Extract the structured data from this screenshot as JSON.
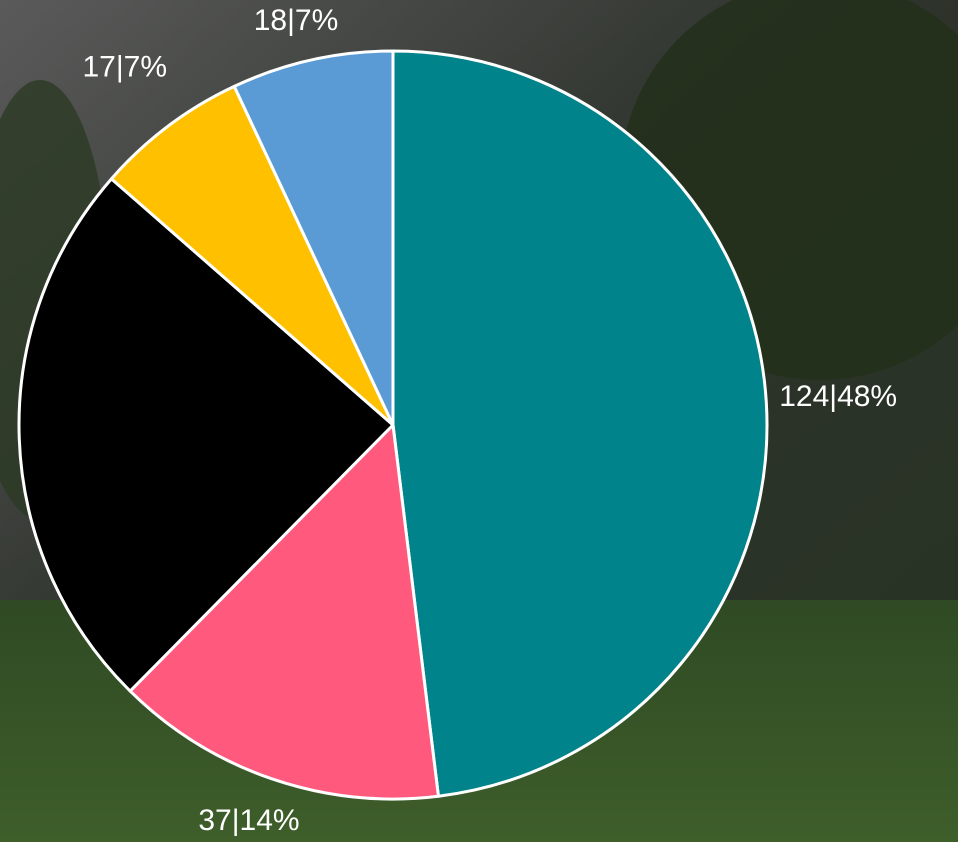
{
  "chart_data": {
    "type": "pie",
    "values": [
      124,
      37,
      62,
      17,
      18
    ],
    "value_labels": [
      "124|48%",
      "37|14%",
      null,
      "17|7%",
      "18|7%"
    ],
    "colors": [
      "#00838a",
      "#ff5a7e",
      "#000000",
      "#ffc000",
      "#5b9bd5"
    ]
  }
}
